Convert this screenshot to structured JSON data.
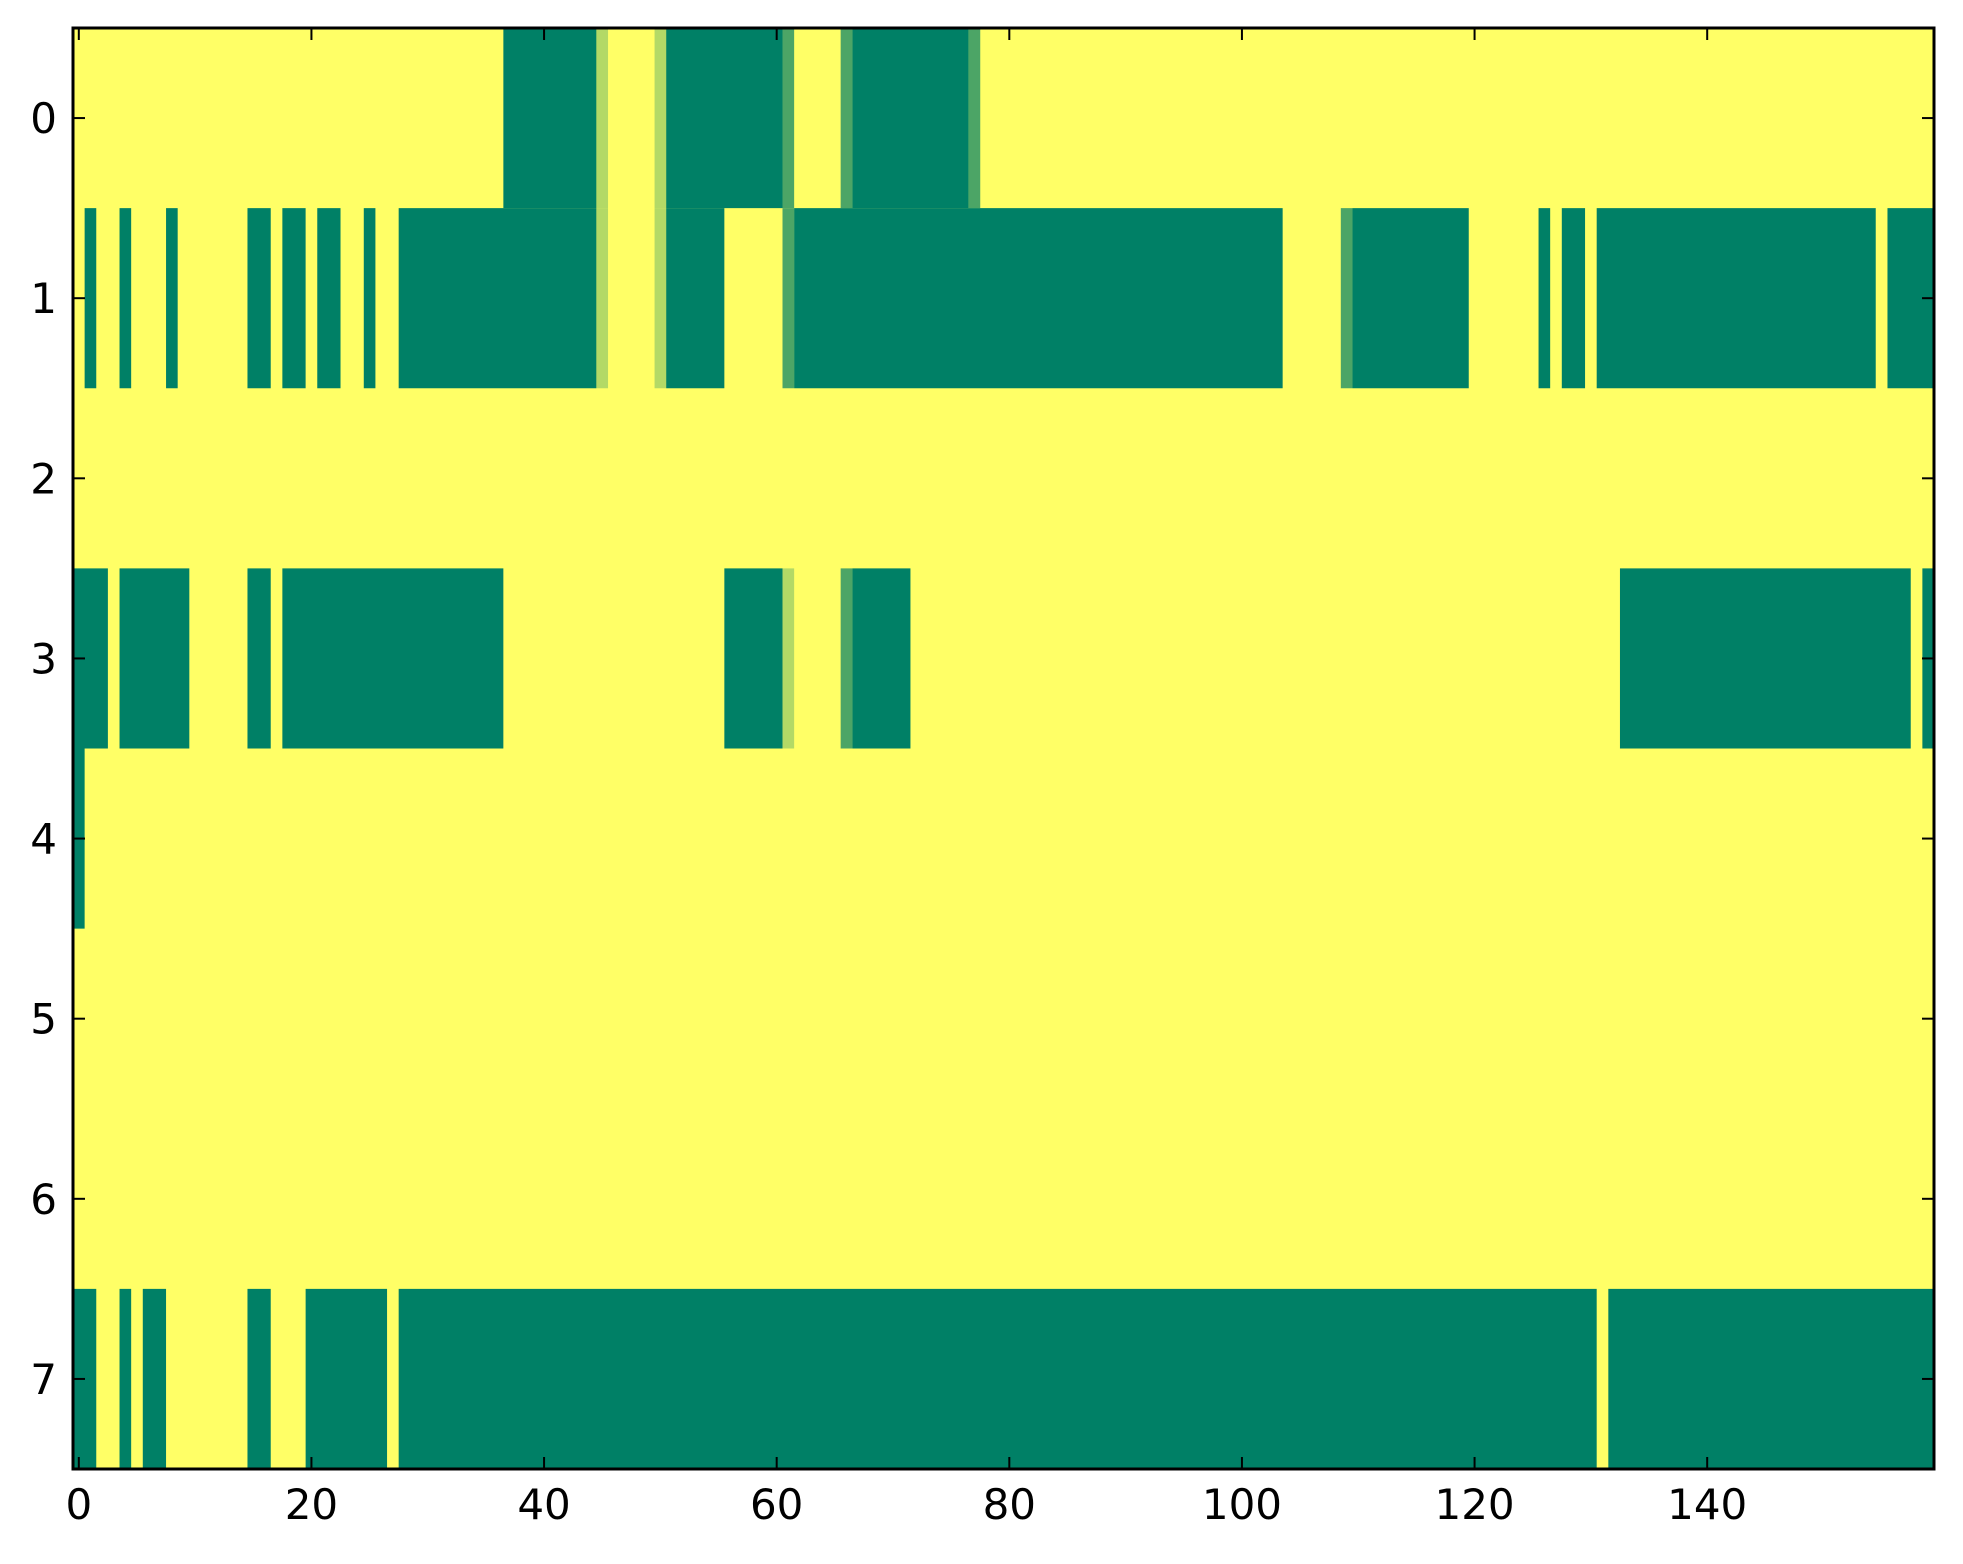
{
  "chart_data": {
    "type": "heatmap",
    "title": "",
    "xlabel": "",
    "ylabel": "",
    "xlim": [
      -0.5,
      159.5
    ],
    "ylim": [
      7.5,
      -0.5
    ],
    "n_columns": 160,
    "rows": [
      0,
      1,
      2,
      3,
      4,
      5,
      6,
      7
    ],
    "x_ticks": [
      0,
      20,
      40,
      60,
      80,
      100,
      120,
      140
    ],
    "x_tick_labels": [
      "0",
      "20",
      "40",
      "60",
      "80",
      "100",
      "120",
      "140"
    ],
    "y_ticks": [
      0,
      1,
      2,
      3,
      4,
      5,
      6,
      7
    ],
    "y_tick_labels": [
      "0",
      "1",
      "2",
      "3",
      "4",
      "5",
      "6",
      "7"
    ],
    "grid": false,
    "legend": "none",
    "colormap": "summer",
    "value_range": [
      0,
      1
    ],
    "background_value": 1,
    "colors": {
      "low": "#008066",
      "mid_dark": "#4ca566",
      "mid_light": "#b3d966",
      "high": "#ffff66"
    },
    "segments": [
      {
        "row": 0,
        "x0": 37,
        "x1": 44,
        "value": 0
      },
      {
        "row": 0,
        "x0": 45,
        "x1": 45,
        "value": 0.7
      },
      {
        "row": 0,
        "x0": 50,
        "x1": 50,
        "value": 0.7
      },
      {
        "row": 0,
        "x0": 51,
        "x1": 60,
        "value": 0
      },
      {
        "row": 0,
        "x0": 61,
        "x1": 61,
        "value": 0.3
      },
      {
        "row": 0,
        "x0": 66,
        "x1": 66,
        "value": 0.3
      },
      {
        "row": 0,
        "x0": 67,
        "x1": 76,
        "value": 0
      },
      {
        "row": 0,
        "x0": 77,
        "x1": 77,
        "value": 0.3
      },
      {
        "row": 1,
        "x0": 1,
        "x1": 1,
        "value": 0
      },
      {
        "row": 1,
        "x0": 4,
        "x1": 4,
        "value": 0
      },
      {
        "row": 1,
        "x0": 8,
        "x1": 8,
        "value": 0
      },
      {
        "row": 1,
        "x0": 15,
        "x1": 16,
        "value": 0
      },
      {
        "row": 1,
        "x0": 18,
        "x1": 19,
        "value": 0
      },
      {
        "row": 1,
        "x0": 21,
        "x1": 22,
        "value": 0
      },
      {
        "row": 1,
        "x0": 25,
        "x1": 25,
        "value": 0
      },
      {
        "row": 1,
        "x0": 28,
        "x1": 44,
        "value": 0
      },
      {
        "row": 1,
        "x0": 45,
        "x1": 45,
        "value": 0.7
      },
      {
        "row": 1,
        "x0": 50,
        "x1": 50,
        "value": 0.7
      },
      {
        "row": 1,
        "x0": 51,
        "x1": 55,
        "value": 0
      },
      {
        "row": 1,
        "x0": 61,
        "x1": 61,
        "value": 0.3
      },
      {
        "row": 1,
        "x0": 62,
        "x1": 103,
        "value": 0
      },
      {
        "row": 1,
        "x0": 109,
        "x1": 109,
        "value": 0.3
      },
      {
        "row": 1,
        "x0": 110,
        "x1": 119,
        "value": 0
      },
      {
        "row": 1,
        "x0": 126,
        "x1": 126,
        "value": 0
      },
      {
        "row": 1,
        "x0": 128,
        "x1": 129,
        "value": 0
      },
      {
        "row": 1,
        "x0": 131,
        "x1": 154,
        "value": 0
      },
      {
        "row": 1,
        "x0": 155,
        "x1": 155,
        "value": 1
      },
      {
        "row": 1,
        "x0": 156,
        "x1": 159,
        "value": 0
      },
      {
        "row": 3,
        "x0": -0.5,
        "x1": 2,
        "value": 0
      },
      {
        "row": 3,
        "x0": 4,
        "x1": 9,
        "value": 0
      },
      {
        "row": 3,
        "x0": 15,
        "x1": 16,
        "value": 0
      },
      {
        "row": 3,
        "x0": 18,
        "x1": 36,
        "value": 0
      },
      {
        "row": 3,
        "x0": 56,
        "x1": 60,
        "value": 0
      },
      {
        "row": 3,
        "x0": 61,
        "x1": 61,
        "value": 0.7
      },
      {
        "row": 3,
        "x0": 66,
        "x1": 66,
        "value": 0.3
      },
      {
        "row": 3,
        "x0": 67,
        "x1": 71,
        "value": 0
      },
      {
        "row": 3,
        "x0": 133,
        "x1": 157,
        "value": 0
      },
      {
        "row": 3,
        "x0": 159,
        "x1": 159,
        "value": 0
      },
      {
        "row": 4,
        "x0": -0.5,
        "x1": 0,
        "value": 0
      },
      {
        "row": 7,
        "x0": -0.5,
        "x1": 1,
        "value": 0
      },
      {
        "row": 7,
        "x0": 4,
        "x1": 4,
        "value": 0
      },
      {
        "row": 7,
        "x0": 6,
        "x1": 7,
        "value": 0
      },
      {
        "row": 7,
        "x0": 15,
        "x1": 16,
        "value": 0
      },
      {
        "row": 7,
        "x0": 20,
        "x1": 26,
        "value": 0
      },
      {
        "row": 7,
        "x0": 28,
        "x1": 130,
        "value": 0
      },
      {
        "row": 7,
        "x0": 132,
        "x1": 159,
        "value": 0
      }
    ]
  }
}
